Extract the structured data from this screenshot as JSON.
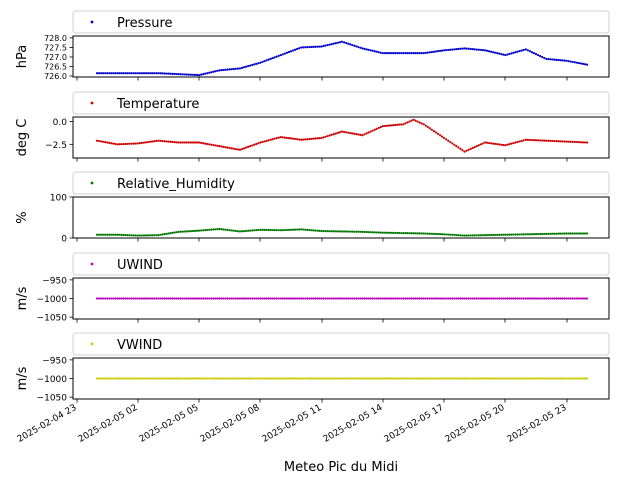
{
  "figure": {
    "xlabel": "Meteo Pic du Midi"
  },
  "x_ticks": [
    "2025-02-04 23",
    "2025-02-05 02",
    "2025-02-05 05",
    "2025-02-05 08",
    "2025-02-05 11",
    "2025-02-05 14",
    "2025-02-05 17",
    "2025-02-05 20",
    "2025-02-05 23"
  ],
  "chart_data": [
    {
      "type": "scatter",
      "legend": "Pressure",
      "ylabel": "hPa",
      "color": "#0000cc",
      "ylim": [
        725.95,
        728.1
      ],
      "yticks": [
        726.0,
        726.5,
        727.0,
        727.5,
        728.0
      ],
      "ytick_labels": [
        "726.0",
        "726.5",
        "727.0",
        "727.5",
        "728.0"
      ],
      "x_hours": [
        0,
        1,
        2,
        3,
        4,
        5,
        6,
        7,
        8,
        9,
        10,
        11,
        12,
        13,
        14,
        15,
        16,
        17,
        18,
        19,
        20,
        21,
        22,
        23,
        24
      ],
      "y": [
        726.15,
        726.15,
        726.15,
        726.15,
        726.1,
        726.05,
        726.3,
        726.4,
        726.7,
        727.1,
        727.5,
        727.55,
        727.8,
        727.45,
        727.2,
        727.2,
        727.2,
        727.35,
        727.45,
        727.35,
        727.1,
        727.4,
        726.9,
        726.8,
        726.6
      ]
    },
    {
      "type": "scatter",
      "legend": "Temperature",
      "ylabel": "deg C",
      "color": "#cc0000",
      "ylim": [
        -4.0,
        0.5
      ],
      "yticks": [
        -2.5,
        0.0
      ],
      "ytick_labels": [
        "−2.5",
        "0.0"
      ],
      "x_hours": [
        0,
        1,
        2,
        3,
        4,
        5,
        6,
        7,
        8,
        9,
        10,
        11,
        12,
        13,
        14,
        15,
        15.5,
        16,
        17,
        18,
        19,
        20,
        21,
        22,
        23,
        24
      ],
      "y": [
        -2.1,
        -2.5,
        -2.4,
        -2.1,
        -2.3,
        -2.3,
        -2.7,
        -3.1,
        -2.3,
        -1.7,
        -2.0,
        -1.8,
        -1.1,
        -1.5,
        -0.5,
        -0.3,
        0.2,
        -0.3,
        -1.8,
        -3.3,
        -2.3,
        -2.6,
        -2.0,
        -2.1,
        -2.2,
        -2.3
      ]
    },
    {
      "type": "scatter",
      "legend": "Relative_Humidity",
      "ylabel": "%",
      "color": "#007700",
      "ylim": [
        0,
        100
      ],
      "yticks": [
        0,
        100
      ],
      "ytick_labels": [
        "0",
        "100"
      ],
      "x_hours": [
        0,
        1,
        2,
        3,
        4,
        5,
        6,
        7,
        8,
        9,
        10,
        11,
        12,
        13,
        14,
        15,
        16,
        17,
        18,
        19,
        20,
        21,
        22,
        23,
        24
      ],
      "y": [
        8,
        8,
        6,
        7,
        15,
        18,
        22,
        16,
        20,
        19,
        21,
        17,
        16,
        15,
        13,
        12,
        11,
        9,
        6,
        7,
        8,
        9,
        10,
        11,
        11
      ]
    },
    {
      "type": "scatter",
      "legend": "UWIND",
      "ylabel": "m/s",
      "color": "#bb00bb",
      "ylim": [
        -1055,
        -945
      ],
      "yticks": [
        -1050,
        -1000,
        -950
      ],
      "ytick_labels": [
        "−1050",
        "−1000",
        "−950"
      ],
      "x_hours": [
        0,
        24
      ],
      "y": [
        -1000,
        -1000
      ]
    },
    {
      "type": "scatter",
      "legend": "VWIND",
      "ylabel": "m/s",
      "color": "#cccc00",
      "ylim": [
        -1055,
        -945
      ],
      "yticks": [
        -1050,
        -1000,
        -950
      ],
      "ytick_labels": [
        "−1050",
        "−1000",
        "−950"
      ],
      "x_hours": [
        0,
        24
      ],
      "y": [
        -1000,
        -1000
      ]
    }
  ]
}
